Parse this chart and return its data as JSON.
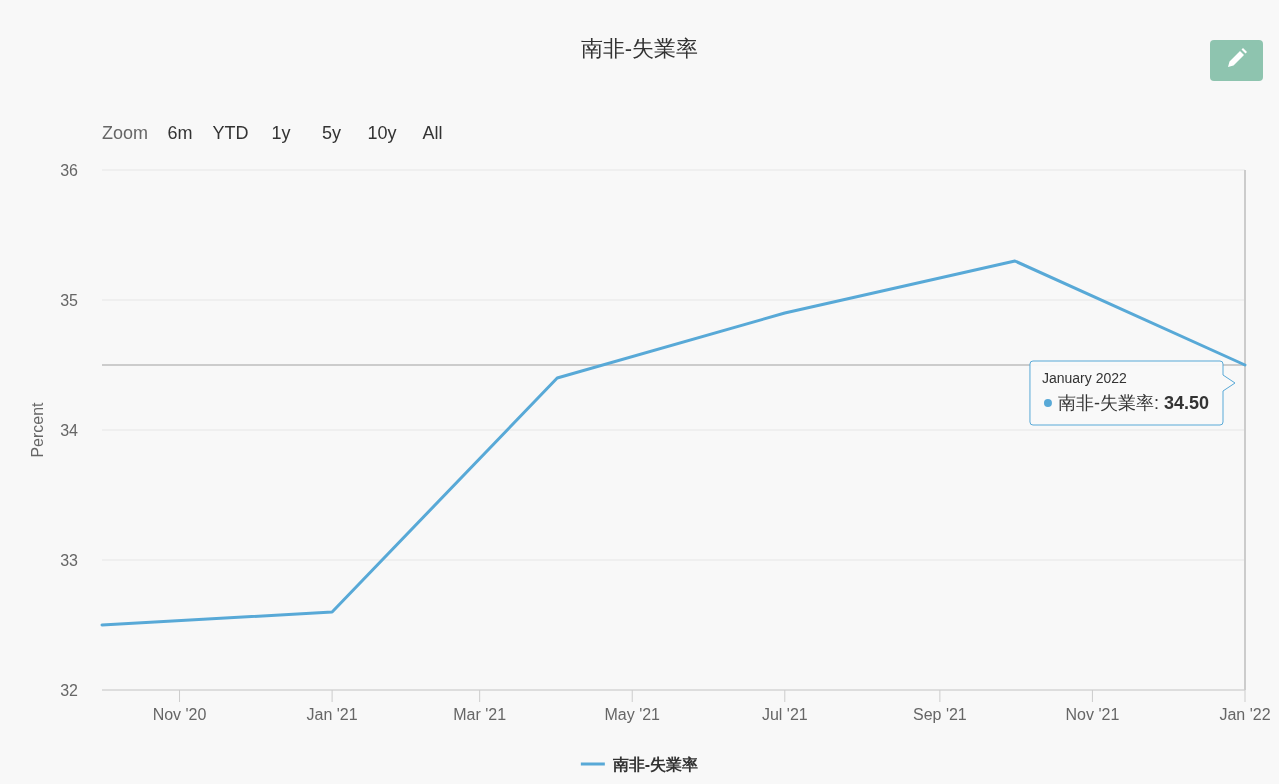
{
  "chart_data": {
    "type": "line",
    "title": "南非-失業率",
    "ylabel": "Percent",
    "x": [
      "2020-10",
      "2021-01",
      "2021-04",
      "2021-07",
      "2021-10",
      "2022-01"
    ],
    "series": [
      {
        "name": "南非-失業率",
        "color": "#58a9d7",
        "values": [
          32.5,
          32.6,
          34.4,
          34.9,
          35.3,
          34.5
        ]
      }
    ],
    "xlim": [
      "2020-10",
      "2022-01"
    ],
    "xticks": [
      {
        "value": "2020-11",
        "label": "Nov '20"
      },
      {
        "value": "2021-01",
        "label": "Jan '21"
      },
      {
        "value": "2021-03",
        "label": "Mar '21"
      },
      {
        "value": "2021-05",
        "label": "May '21"
      },
      {
        "value": "2021-07",
        "label": "Jul '21"
      },
      {
        "value": "2021-09",
        "label": "Sep '21"
      },
      {
        "value": "2021-11",
        "label": "Nov '21"
      },
      {
        "value": "2022-01",
        "label": "Jan '22"
      }
    ],
    "ylim": [
      32,
      36
    ],
    "yticks": [
      32,
      33,
      34,
      35,
      36
    ],
    "grid": "y",
    "legend": "bottom",
    "ref_lines": [
      {
        "axis": "y",
        "value": 34.5,
        "color": "#cccccc"
      },
      {
        "axis": "x",
        "value": "2022-01",
        "color": "#cccccc"
      }
    ],
    "annotations": [
      "Zoom",
      "6m",
      "YTD",
      "1y",
      "5y",
      "10y",
      "All",
      {
        "text": "January 2022\n南非-失業率: 34.50",
        "x": "2022-01",
        "y": 34.5
      }
    ]
  }
}
